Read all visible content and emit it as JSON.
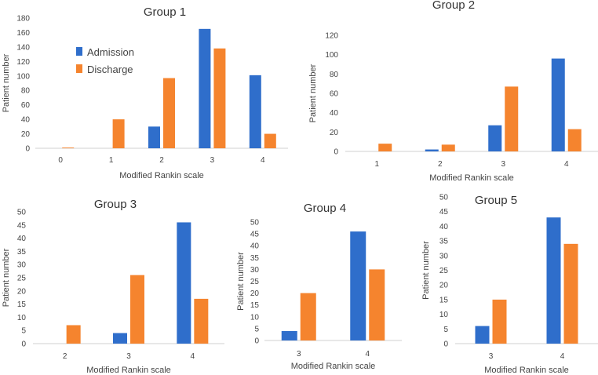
{
  "colors": {
    "admission": "#2f6ecb",
    "discharge": "#f5842e"
  },
  "legend": {
    "admission": "Admission",
    "discharge": "Discharge"
  },
  "chart_data": [
    {
      "type": "bar",
      "title": "Group 1",
      "xlabel": "Modified Rankin scale",
      "ylabel": "Patient number",
      "ylim": [
        0,
        180
      ],
      "yticks": [
        0,
        20,
        40,
        60,
        80,
        100,
        120,
        140,
        160,
        180
      ],
      "categories": [
        "0",
        "1",
        "2",
        "3",
        "4"
      ],
      "series": [
        {
          "name": "Admission",
          "values": [
            0,
            0,
            30,
            165,
            101
          ]
        },
        {
          "name": "Discharge",
          "values": [
            1,
            40,
            97,
            138,
            20
          ]
        }
      ],
      "legend_position": "top-left"
    },
    {
      "type": "bar",
      "title": "Group 2",
      "xlabel": "Modified Rankin scale",
      "ylabel": "Patient number",
      "ylim": [
        0,
        120
      ],
      "yticks": [
        0,
        20,
        40,
        60,
        80,
        100,
        120
      ],
      "categories": [
        "1",
        "2",
        "3",
        "4"
      ],
      "series": [
        {
          "name": "Admission",
          "values": [
            0,
            2,
            27,
            96
          ]
        },
        {
          "name": "Discharge",
          "values": [
            8,
            7,
            67,
            23
          ]
        }
      ]
    },
    {
      "type": "bar",
      "title": "Group 3",
      "xlabel": "Modified Rankin scale",
      "ylabel": "Patient number",
      "ylim": [
        0,
        50
      ],
      "yticks": [
        0,
        5,
        10,
        15,
        20,
        25,
        30,
        35,
        40,
        45,
        50
      ],
      "categories": [
        "2",
        "3",
        "4"
      ],
      "series": [
        {
          "name": "Admission",
          "values": [
            0,
            4,
            46
          ]
        },
        {
          "name": "Discharge",
          "values": [
            7,
            26,
            17
          ]
        }
      ]
    },
    {
      "type": "bar",
      "title": "Group 4",
      "xlabel": "Modified Rankin scale",
      "ylabel": "Patient number",
      "ylim": [
        0,
        50
      ],
      "yticks": [
        0,
        5,
        10,
        15,
        20,
        25,
        30,
        35,
        40,
        45,
        50
      ],
      "categories": [
        "3",
        "4"
      ],
      "series": [
        {
          "name": "Admission",
          "values": [
            4,
            46
          ]
        },
        {
          "name": "Discharge",
          "values": [
            20,
            30
          ]
        }
      ]
    },
    {
      "type": "bar",
      "title": "Group 5",
      "xlabel": "Modified Rankin scale",
      "ylabel": "Patient number",
      "ylim": [
        0,
        50
      ],
      "yticks": [
        0,
        5,
        10,
        15,
        20,
        25,
        30,
        35,
        40,
        45,
        50
      ],
      "categories": [
        "3",
        "4"
      ],
      "series": [
        {
          "name": "Admission",
          "values": [
            6,
            43
          ]
        },
        {
          "name": "Discharge",
          "values": [
            15,
            34
          ]
        }
      ]
    }
  ]
}
